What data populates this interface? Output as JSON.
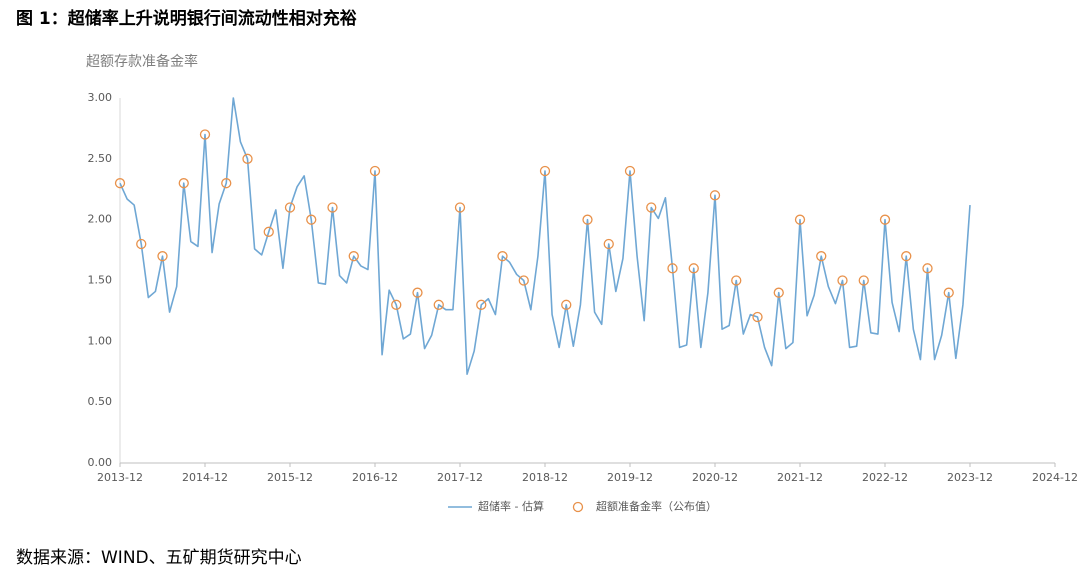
{
  "chart_data": {
    "type": "line",
    "title": "图 1：超储率上升说明银行间流动性相对充裕",
    "y_label": "超额存款准备金率",
    "source": "数据来源：WIND、五矿期货研究中心",
    "x": [
      "2013-12",
      "2014-01",
      "2014-02",
      "2014-03",
      "2014-04",
      "2014-05",
      "2014-06",
      "2014-07",
      "2014-08",
      "2014-09",
      "2014-10",
      "2014-11",
      "2014-12",
      "2015-01",
      "2015-02",
      "2015-03",
      "2015-04",
      "2015-05",
      "2015-06",
      "2015-07",
      "2015-08",
      "2015-09",
      "2015-10",
      "2015-11",
      "2015-12",
      "2016-01",
      "2016-02",
      "2016-03",
      "2016-04",
      "2016-05",
      "2016-06",
      "2016-07",
      "2016-08",
      "2016-09",
      "2016-10",
      "2016-11",
      "2016-12",
      "2017-01",
      "2017-02",
      "2017-03",
      "2017-04",
      "2017-05",
      "2017-06",
      "2017-07",
      "2017-08",
      "2017-09",
      "2017-10",
      "2017-11",
      "2017-12",
      "2018-01",
      "2018-02",
      "2018-03",
      "2018-04",
      "2018-05",
      "2018-06",
      "2018-07",
      "2018-08",
      "2018-09",
      "2018-10",
      "2018-11",
      "2018-12",
      "2019-01",
      "2019-02",
      "2019-03",
      "2019-04",
      "2019-05",
      "2019-06",
      "2019-07",
      "2019-08",
      "2019-09",
      "2019-10",
      "2019-11",
      "2019-12",
      "2020-01",
      "2020-02",
      "2020-03",
      "2020-04",
      "2020-05",
      "2020-06",
      "2020-07",
      "2020-08",
      "2020-09",
      "2020-10",
      "2020-11",
      "2020-12",
      "2021-01",
      "2021-02",
      "2021-03",
      "2021-04",
      "2021-05",
      "2021-06",
      "2021-07",
      "2021-08",
      "2021-09",
      "2021-10",
      "2021-11",
      "2021-12",
      "2022-01",
      "2022-02",
      "2022-03",
      "2022-04",
      "2022-05",
      "2022-06",
      "2022-07",
      "2022-08",
      "2022-09",
      "2022-10",
      "2022-11",
      "2022-12",
      "2023-01",
      "2023-02",
      "2023-03",
      "2023-04",
      "2023-05",
      "2023-06",
      "2023-07",
      "2023-08",
      "2023-09",
      "2023-10",
      "2023-11",
      "2023-12"
    ],
    "series": [
      {
        "name": "超储率 - 估算",
        "type": "line",
        "color": "#6fa7d4",
        "values": [
          2.3,
          2.17,
          2.12,
          1.8,
          1.36,
          1.41,
          1.7,
          1.24,
          1.45,
          2.3,
          1.82,
          1.78,
          2.7,
          1.73,
          2.13,
          2.3,
          3.0,
          2.64,
          2.5,
          1.76,
          1.71,
          1.9,
          2.08,
          1.6,
          2.1,
          2.27,
          2.36,
          2.0,
          1.48,
          1.47,
          2.1,
          1.54,
          1.48,
          1.7,
          1.62,
          1.59,
          2.4,
          0.89,
          1.42,
          1.3,
          1.02,
          1.06,
          1.4,
          0.94,
          1.05,
          1.3,
          1.26,
          1.26,
          2.1,
          0.73,
          0.92,
          1.3,
          1.35,
          1.22,
          1.7,
          1.65,
          1.55,
          1.5,
          1.26,
          1.7,
          2.4,
          1.22,
          0.95,
          1.3,
          0.96,
          1.3,
          2.0,
          1.24,
          1.14,
          1.8,
          1.41,
          1.68,
          2.4,
          1.7,
          1.17,
          2.1,
          2.01,
          2.18,
          1.6,
          0.95,
          0.97,
          1.6,
          0.95,
          1.4,
          2.2,
          1.1,
          1.13,
          1.5,
          1.06,
          1.22,
          1.2,
          0.95,
          0.8,
          1.4,
          0.94,
          0.99,
          2.0,
          1.21,
          1.38,
          1.7,
          1.45,
          1.31,
          1.5,
          0.95,
          0.96,
          1.5,
          1.07,
          1.06,
          2.0,
          1.32,
          1.08,
          1.7,
          1.1,
          0.85,
          1.6,
          0.85,
          1.05,
          1.4,
          0.86,
          1.3,
          2.12
        ]
      },
      {
        "name": "超额准备金率（公布值）",
        "type": "scatter",
        "color": "#e8914a",
        "values": [
          2.3,
          null,
          null,
          1.8,
          null,
          null,
          1.7,
          null,
          null,
          2.3,
          null,
          null,
          2.7,
          null,
          null,
          2.3,
          null,
          null,
          2.5,
          null,
          null,
          1.9,
          null,
          null,
          2.1,
          null,
          null,
          2.0,
          null,
          null,
          2.1,
          null,
          null,
          1.7,
          null,
          null,
          2.4,
          null,
          null,
          1.3,
          null,
          null,
          1.4,
          null,
          null,
          1.3,
          null,
          null,
          2.1,
          null,
          null,
          1.3,
          null,
          null,
          1.7,
          null,
          null,
          1.5,
          null,
          null,
          2.4,
          null,
          null,
          1.3,
          null,
          null,
          2.0,
          null,
          null,
          1.8,
          null,
          null,
          2.4,
          null,
          null,
          2.1,
          null,
          null,
          1.6,
          null,
          null,
          1.6,
          null,
          null,
          2.2,
          null,
          null,
          1.5,
          null,
          null,
          1.2,
          null,
          null,
          1.4,
          null,
          null,
          2.0,
          null,
          null,
          1.7,
          null,
          null,
          1.5,
          null,
          null,
          1.5,
          null,
          null,
          2.0,
          null,
          null,
          1.7,
          null,
          null,
          1.6,
          null,
          null,
          1.4,
          null,
          null,
          null
        ]
      }
    ],
    "xlim": [
      "2013-12",
      "2024-12"
    ],
    "xticks": [
      "2013-12",
      "2014-12",
      "2015-12",
      "2016-12",
      "2017-12",
      "2018-12",
      "2019-12",
      "2020-12",
      "2021-12",
      "2022-12",
      "2023-12",
      "2024-12"
    ],
    "ylim": [
      0,
      3
    ],
    "yticks": [
      {
        "value": 0,
        "label": "0.00"
      },
      {
        "value": 0.5,
        "label": "0.50"
      },
      {
        "value": 1,
        "label": "1.00"
      },
      {
        "value": 1.5,
        "label": "1.50"
      },
      {
        "value": 2,
        "label": "2.00"
      },
      {
        "value": 2.5,
        "label": "2.50"
      },
      {
        "value": 3,
        "label": "3.00"
      }
    ],
    "grid": false,
    "legend": "bottom"
  }
}
